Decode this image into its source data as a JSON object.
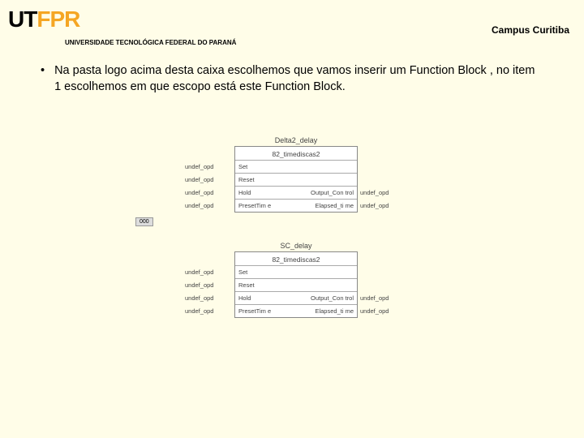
{
  "header": {
    "logo_u": "U",
    "logo_t": "T",
    "logo_f": "F",
    "logo_p": "P",
    "logo_r": "R",
    "university": "UNIVERSIDADE TECNOLÓGICA FEDERAL DO PARANÁ",
    "campus": "Campus Curitiba"
  },
  "bullet": {
    "dot": "•",
    "text": "Na pasta logo acima desta caixa escolhemos que vamos inserir um Function Block , no item 1 escolhemos em que escopo está este Function Block."
  },
  "diagram": {
    "block1": {
      "title": "Delta2_delay",
      "fb_name": "82_timediscas2",
      "rows": [
        {
          "left": "undef_opd",
          "pin_l": "Set",
          "pin_r": "",
          "right": ""
        },
        {
          "left": "undef_opd",
          "pin_l": "Reset",
          "pin_r": "",
          "right": ""
        },
        {
          "left": "undef_opd",
          "pin_l": "Hold",
          "pin_r": "Output_Con\ntrol",
          "right": "undef_opd"
        },
        {
          "left": "undef_opd",
          "pin_l": "PresetTim\ne",
          "pin_r": "Elapsed_ti\nme",
          "right": "undef_opd"
        }
      ],
      "footer": "000"
    },
    "block2": {
      "title": "SC_delay",
      "fb_name": "82_timediscas2",
      "rows": [
        {
          "left": "undef_opd",
          "pin_l": "Set",
          "pin_r": "",
          "right": ""
        },
        {
          "left": "undef_opd",
          "pin_l": "Reset",
          "pin_r": "",
          "right": ""
        },
        {
          "left": "undef_opd",
          "pin_l": "Hold",
          "pin_r": "Output_Con\ntrol",
          "right": "undef_opd"
        },
        {
          "left": "undef_opd",
          "pin_l": "PresetTim\ne",
          "pin_r": "Elapsed_ti\nme",
          "right": "undef_opd"
        }
      ]
    }
  },
  "colors": {
    "page_bg": "#fffde8",
    "logo_accent": "#f5a623",
    "text": "#000000",
    "fb_border": "#888888",
    "fb_bg": "#ffffff"
  }
}
